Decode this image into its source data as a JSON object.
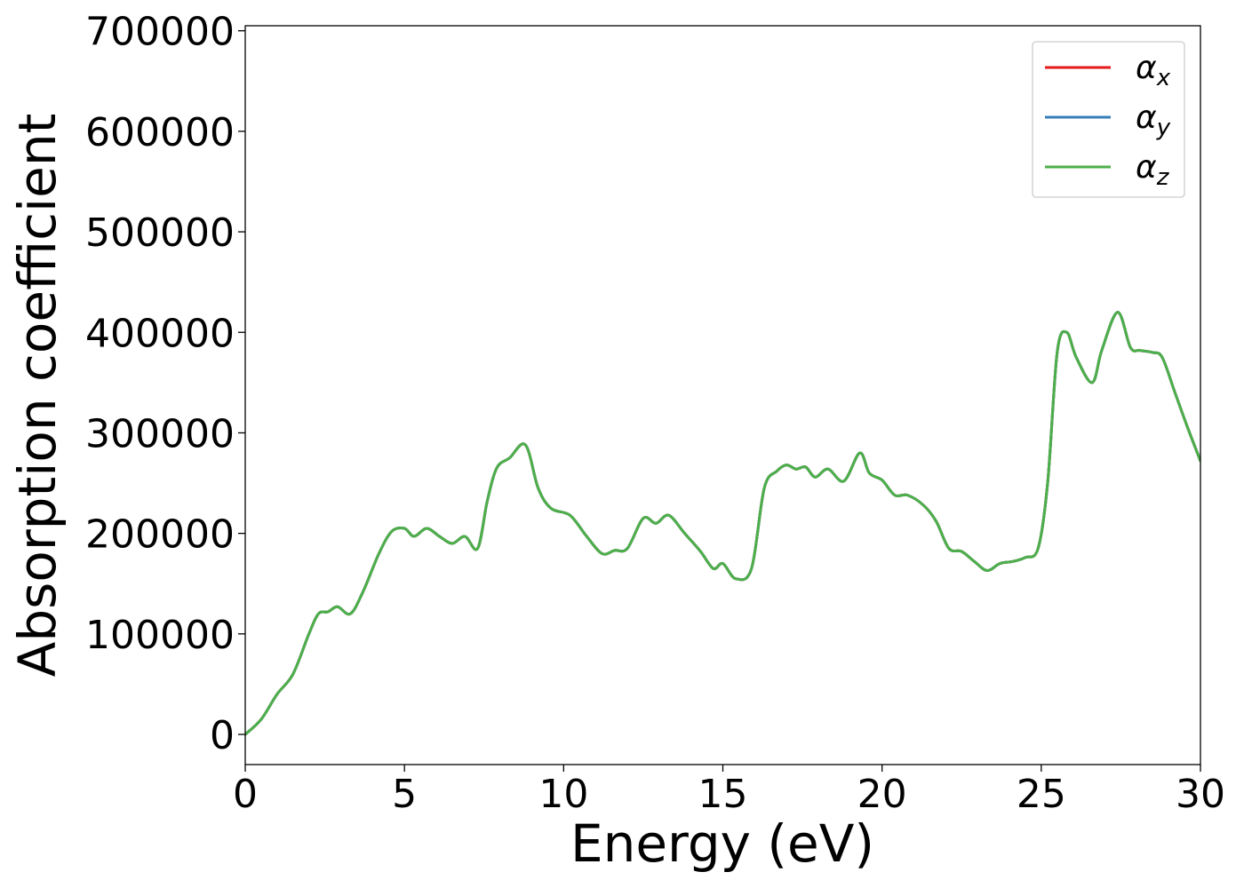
{
  "chart_data": {
    "type": "line",
    "xlabel": "Energy (eV)",
    "ylabel": "Absorption coefficient",
    "xlim": [
      0,
      30
    ],
    "ylim": [
      -30000,
      705000
    ],
    "xticks": [
      "0",
      "5",
      "10",
      "15",
      "20",
      "25",
      "30"
    ],
    "yticks": [
      "0",
      "100000",
      "200000",
      "300000",
      "400000",
      "500000",
      "600000",
      "700000"
    ],
    "grid": false,
    "legend_position": "top-right",
    "x": [
      0,
      0.5,
      1.0,
      1.5,
      2.0,
      2.3,
      2.6,
      2.9,
      3.3,
      3.7,
      4.2,
      4.6,
      5.0,
      5.3,
      5.7,
      6.1,
      6.5,
      6.9,
      7.3,
      7.6,
      7.9,
      8.3,
      8.8,
      9.2,
      9.6,
      10.2,
      10.7,
      11.2,
      11.6,
      12.0,
      12.5,
      12.9,
      13.3,
      13.8,
      14.3,
      14.7,
      15.0,
      15.4,
      15.9,
      16.3,
      16.7,
      17.0,
      17.3,
      17.6,
      17.9,
      18.3,
      18.8,
      19.3,
      19.6,
      20.0,
      20.4,
      20.8,
      21.3,
      21.7,
      22.1,
      22.5,
      22.9,
      23.3,
      23.7,
      24.1,
      24.5,
      24.9,
      25.2,
      25.5,
      25.8,
      26.1,
      26.6,
      26.9,
      27.4,
      27.8,
      28.1,
      28.5,
      28.8,
      29.2,
      29.6,
      30.0
    ],
    "series": [
      {
        "name": "αx",
        "color": "#e41a1c",
        "values": [
          0,
          15000,
          40000,
          60000,
          100000,
          120000,
          122000,
          127000,
          120000,
          142000,
          180000,
          202000,
          205000,
          197000,
          205000,
          197000,
          190000,
          197000,
          185000,
          232000,
          265000,
          275000,
          288000,
          245000,
          225000,
          218000,
          198000,
          180000,
          183000,
          185000,
          215000,
          210000,
          218000,
          200000,
          182000,
          165000,
          170000,
          155000,
          165000,
          245000,
          262000,
          268000,
          264000,
          266000,
          256000,
          264000,
          252000,
          280000,
          260000,
          253000,
          238000,
          238000,
          228000,
          212000,
          185000,
          182000,
          172000,
          163000,
          170000,
          172000,
          176000,
          185000,
          250000,
          380000,
          400000,
          375000,
          350000,
          382000,
          420000,
          385000,
          382000,
          380000,
          375000,
          340000,
          305000,
          272000
        ]
      },
      {
        "name": "αy",
        "color": "#377eb8",
        "values": [
          0,
          15000,
          40000,
          60000,
          100000,
          120000,
          122000,
          127000,
          120000,
          142000,
          180000,
          202000,
          205000,
          197000,
          205000,
          197000,
          190000,
          197000,
          185000,
          232000,
          265000,
          275000,
          288000,
          245000,
          225000,
          218000,
          198000,
          180000,
          183000,
          185000,
          215000,
          210000,
          218000,
          200000,
          182000,
          165000,
          170000,
          155000,
          165000,
          245000,
          262000,
          268000,
          264000,
          266000,
          256000,
          264000,
          252000,
          280000,
          260000,
          253000,
          238000,
          238000,
          228000,
          212000,
          185000,
          182000,
          172000,
          163000,
          170000,
          172000,
          176000,
          185000,
          250000,
          380000,
          400000,
          375000,
          350000,
          382000,
          420000,
          385000,
          382000,
          380000,
          375000,
          340000,
          305000,
          272000
        ]
      },
      {
        "name": "αz",
        "color": "#4daf4a",
        "values": [
          0,
          15000,
          40000,
          60000,
          100000,
          120000,
          122000,
          127000,
          120000,
          142000,
          180000,
          202000,
          205000,
          197000,
          205000,
          197000,
          190000,
          197000,
          185000,
          232000,
          265000,
          275000,
          288000,
          245000,
          225000,
          218000,
          198000,
          180000,
          183000,
          185000,
          215000,
          210000,
          218000,
          200000,
          182000,
          165000,
          170000,
          155000,
          165000,
          245000,
          262000,
          268000,
          264000,
          266000,
          256000,
          264000,
          252000,
          280000,
          260000,
          253000,
          238000,
          238000,
          228000,
          212000,
          185000,
          182000,
          172000,
          163000,
          170000,
          172000,
          176000,
          185000,
          250000,
          380000,
          400000,
          375000,
          350000,
          382000,
          420000,
          385000,
          382000,
          380000,
          375000,
          340000,
          305000,
          272000
        ]
      }
    ],
    "legend": [
      {
        "symbol": "α",
        "subscript": "x"
      },
      {
        "symbol": "α",
        "subscript": "y"
      },
      {
        "symbol": "α",
        "subscript": "z"
      }
    ]
  }
}
